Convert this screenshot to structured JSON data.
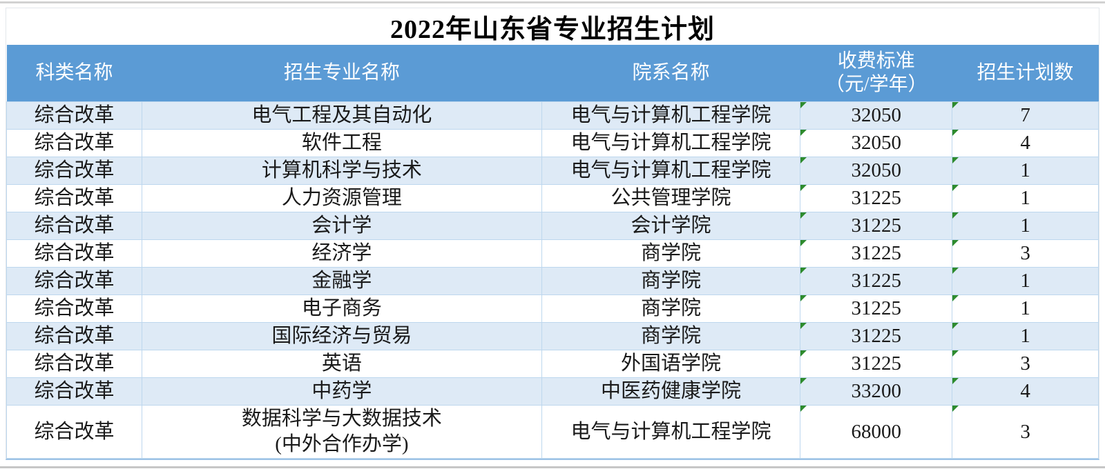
{
  "title": "2022年山东省专业招生计划",
  "table": {
    "headers": [
      {
        "lines": [
          "科类名称"
        ]
      },
      {
        "lines": [
          "招生专业名称"
        ]
      },
      {
        "lines": [
          "院系名称"
        ]
      },
      {
        "lines": [
          "收费标准",
          "（元/学年）"
        ]
      },
      {
        "lines": [
          "招生计划数"
        ]
      }
    ],
    "rows": [
      {
        "category": "综合改革",
        "major_lines": [
          "电气工程及其自动化"
        ],
        "department": "电气与计算机工程学院",
        "fee": "32050",
        "plan": "7"
      },
      {
        "category": "综合改革",
        "major_lines": [
          "软件工程"
        ],
        "department": "电气与计算机工程学院",
        "fee": "32050",
        "plan": "4"
      },
      {
        "category": "综合改革",
        "major_lines": [
          "计算机科学与技术"
        ],
        "department": "电气与计算机工程学院",
        "fee": "32050",
        "plan": "1"
      },
      {
        "category": "综合改革",
        "major_lines": [
          "人力资源管理"
        ],
        "department": "公共管理学院",
        "fee": "31225",
        "plan": "1"
      },
      {
        "category": "综合改革",
        "major_lines": [
          "会计学"
        ],
        "department": "会计学院",
        "fee": "31225",
        "plan": "1"
      },
      {
        "category": "综合改革",
        "major_lines": [
          "经济学"
        ],
        "department": "商学院",
        "fee": "31225",
        "plan": "3"
      },
      {
        "category": "综合改革",
        "major_lines": [
          "金融学"
        ],
        "department": "商学院",
        "fee": "31225",
        "plan": "1"
      },
      {
        "category": "综合改革",
        "major_lines": [
          "电子商务"
        ],
        "department": "商学院",
        "fee": "31225",
        "plan": "1"
      },
      {
        "category": "综合改革",
        "major_lines": [
          "国际经济与贸易"
        ],
        "department": "商学院",
        "fee": "31225",
        "plan": "1"
      },
      {
        "category": "综合改革",
        "major_lines": [
          "英语"
        ],
        "department": "外国语学院",
        "fee": "31225",
        "plan": "3"
      },
      {
        "category": "综合改革",
        "major_lines": [
          "中药学"
        ],
        "department": "中医药健康学院",
        "fee": "33200",
        "plan": "4"
      },
      {
        "category": "综合改革",
        "major_lines": [
          "数据科学与大数据技术",
          "(中外合作办学)"
        ],
        "department": "电气与计算机工程学院",
        "fee": "68000",
        "plan": "3"
      }
    ],
    "colors": {
      "header_bg": "#5B9BD5",
      "band_bg": "#DEEAF6",
      "border": "#BDD7EE",
      "flag_green": "#2E8B2E"
    }
  }
}
